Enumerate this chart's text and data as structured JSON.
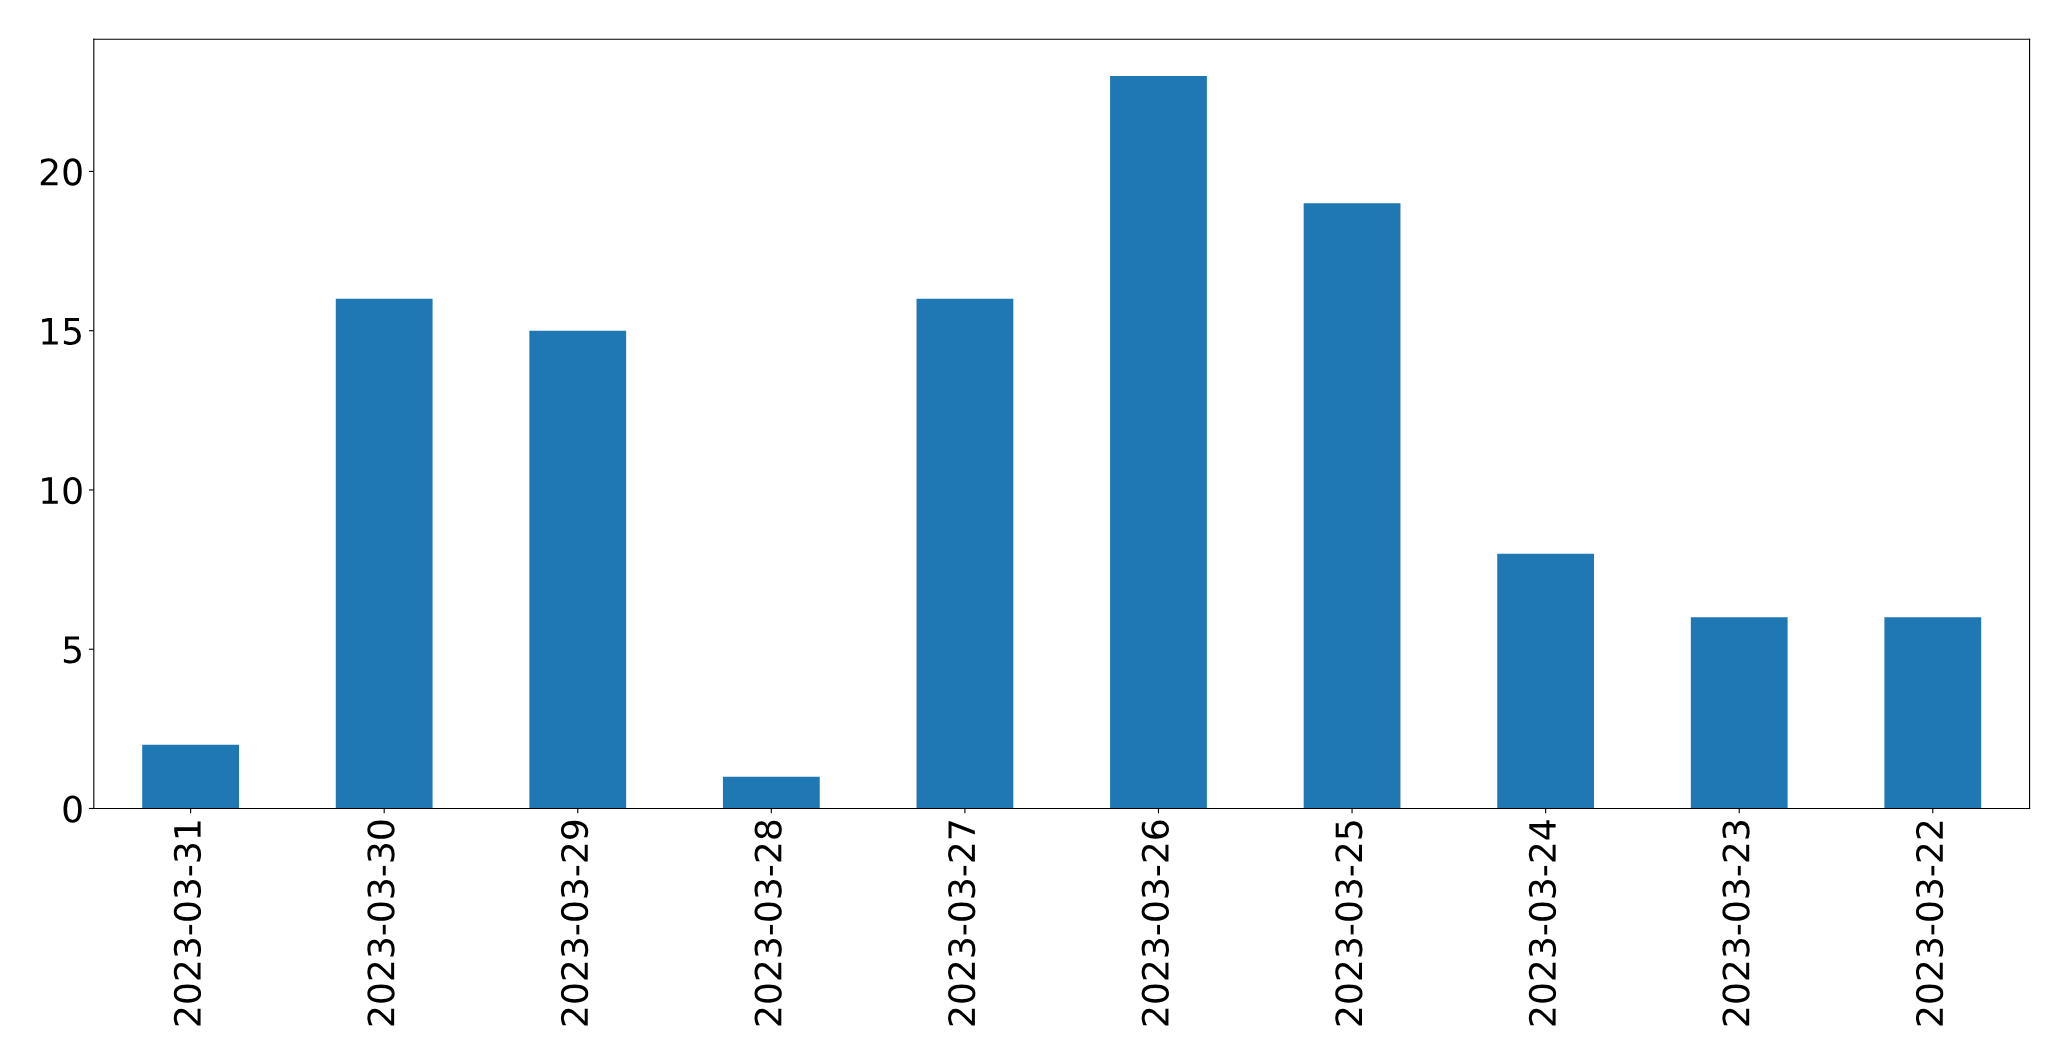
{
  "chart_data": {
    "type": "bar",
    "categories": [
      "2023-03-31",
      "2023-03-30",
      "2023-03-29",
      "2023-03-28",
      "2023-03-27",
      "2023-03-26",
      "2023-03-25",
      "2023-03-24",
      "2023-03-23",
      "2023-03-22"
    ],
    "values": [
      2,
      16,
      15,
      1,
      16,
      23,
      19,
      8,
      6,
      6
    ],
    "color": "#1f77b4",
    "ylim": [
      0,
      24.15
    ],
    "yticks": [
      0,
      5,
      10,
      15,
      20
    ],
    "grid": false,
    "legend": false
  }
}
